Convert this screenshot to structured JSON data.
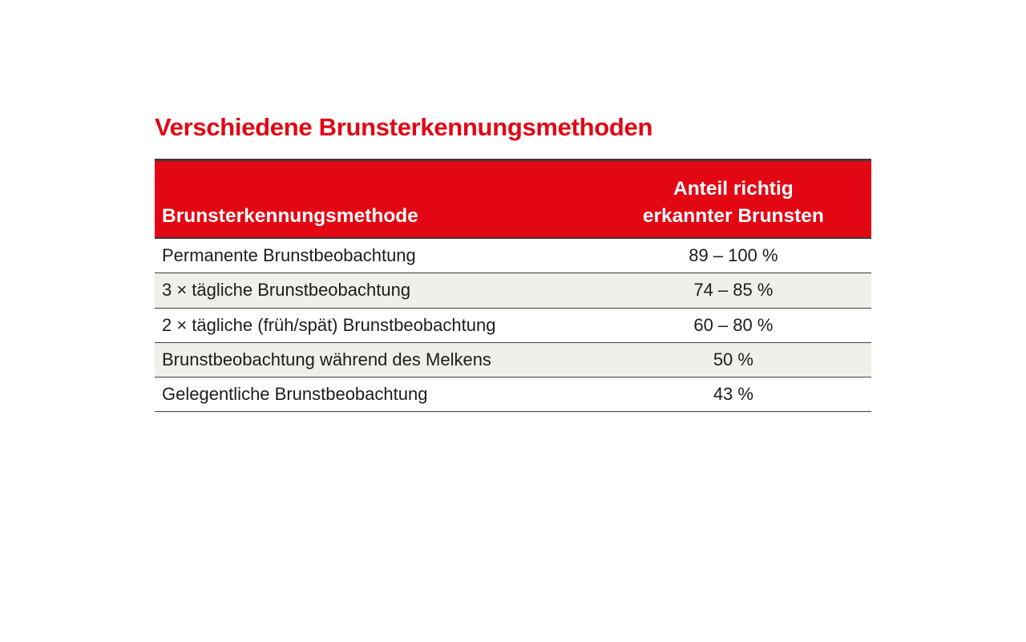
{
  "title": "Verschiedene Brunsterkennungsmethoden",
  "table": {
    "header": {
      "col1": "Brunsterkennungsmethode",
      "col2_line1": "Anteil richtig",
      "col2_line2": "erkannter Brunsten"
    },
    "rows": [
      {
        "method": "Permanente Brunstbeobachtung",
        "value": "89 – 100 %"
      },
      {
        "method": "3 × tägliche Brunstbeobachtung",
        "value": "74 – 85 %"
      },
      {
        "method": "2 × tägliche (früh/spät) Brunstbeobachtung",
        "value": "60 – 80 %"
      },
      {
        "method": "Brunstbeobachtung während des Melkens",
        "value": "50 %"
      },
      {
        "method": "Gelegentliche Brunstbeobachtung",
        "value": "43 %"
      }
    ]
  },
  "colors": {
    "accent_red": "#e30613",
    "row_alt_background": "#f0efe9",
    "rule_line": "#3f3f3a",
    "header_text": "#ffffff",
    "body_text": "#1d1d1b"
  },
  "chart_data": {
    "type": "table",
    "title": "Verschiedene Brunsterkennungsmethoden",
    "columns": [
      "Brunsterkennungsmethode",
      "Anteil richtig erkannter Brunsten"
    ],
    "rows": [
      [
        "Permanente Brunstbeobachtung",
        "89 – 100 %"
      ],
      [
        "3 × tägliche Brunstbeobachtung",
        "74 – 85 %"
      ],
      [
        "2 × tägliche (früh/spät) Brunstbeobachtung",
        "60 – 80 %"
      ],
      [
        "Brunstbeobachtung während des Melkens",
        "50 %"
      ],
      [
        "Gelegentliche Brunstbeobachtung",
        "43 %"
      ]
    ],
    "values_numeric_pct": [
      [
        89,
        100
      ],
      [
        74,
        85
      ],
      [
        60,
        80
      ],
      [
        50,
        50
      ],
      [
        43,
        43
      ]
    ],
    "layout": {
      "header_background": "#e30613",
      "striped": true,
      "value_alignment": "center"
    }
  }
}
